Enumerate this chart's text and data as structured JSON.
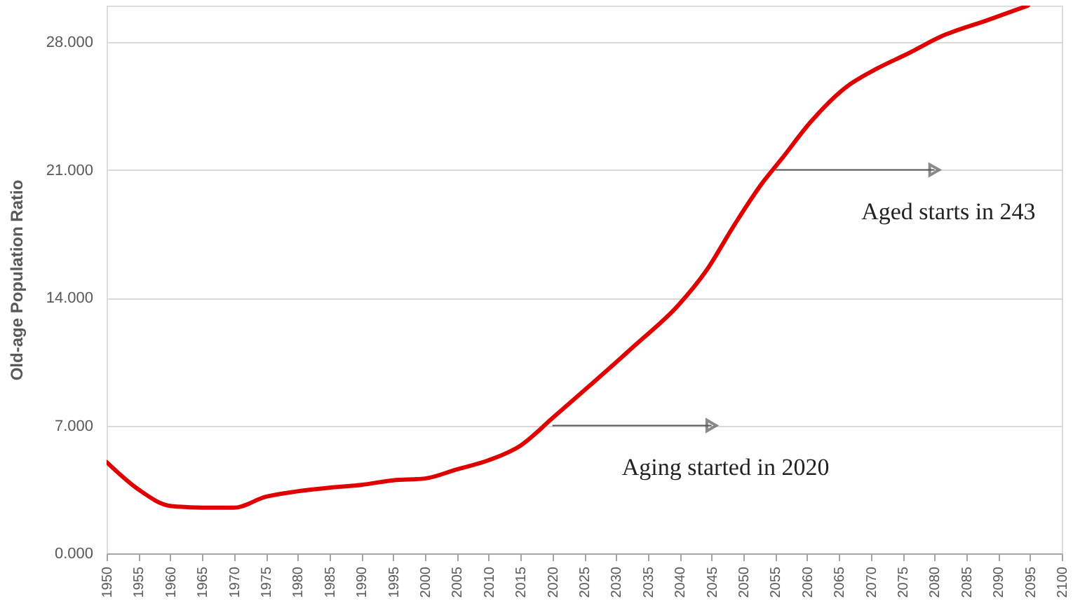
{
  "chart_data": {
    "type": "line",
    "ylabel": "Old-age  Population Ratio",
    "x": [
      1950,
      1955,
      1960,
      1965,
      1970,
      1975,
      1980,
      1985,
      1990,
      1995,
      2000,
      2005,
      2010,
      2015,
      2020,
      2026.4,
      2033,
      2039.8,
      2044.2,
      2048.6,
      2053,
      2056,
      2060.5,
      2066,
      2070.7,
      2076,
      2081,
      2088.3,
      2094.7
    ],
    "series": [
      {
        "color": "#e00000",
        "values": [
          5.0,
          3.5,
          2.6,
          2.5,
          2.5,
          3.1,
          3.4,
          3.6,
          3.75,
          4.0,
          4.1,
          4.6,
          5.1,
          5.9,
          7.4,
          9.35,
          11.4,
          13.6,
          15.5,
          18.0,
          20.3,
          21.6,
          23.6,
          25.5,
          26.5,
          27.4,
          28.3,
          29.2,
          30.0
        ]
      }
    ],
    "xlim": [
      1950,
      2100
    ],
    "xticks": [
      1950,
      1955,
      1960,
      1965,
      1970,
      1975,
      1980,
      1985,
      1990,
      1995,
      2000,
      2005,
      2010,
      2015,
      2020,
      2025,
      2030,
      2035,
      2040,
      2045,
      2050,
      2055,
      2060,
      2065,
      2070,
      2075,
      2080,
      2085,
      2090,
      2095,
      2100
    ],
    "ylim": [
      0,
      30
    ],
    "yticks": [
      {
        "value": 0,
        "label": "0.000"
      },
      {
        "value": 7,
        "label": "7.000"
      },
      {
        "value": 14,
        "label": "14.000"
      },
      {
        "value": 21,
        "label": "21.000"
      },
      {
        "value": 28,
        "label": "28.000"
      }
    ],
    "annotations": [
      {
        "text": "Aging started in 2020",
        "x": 2020,
        "y": 7
      },
      {
        "text": "Aged starts in 243",
        "x": 2055,
        "y": 21
      }
    ],
    "grid": "y",
    "marker": "none",
    "line_style": "solid"
  }
}
